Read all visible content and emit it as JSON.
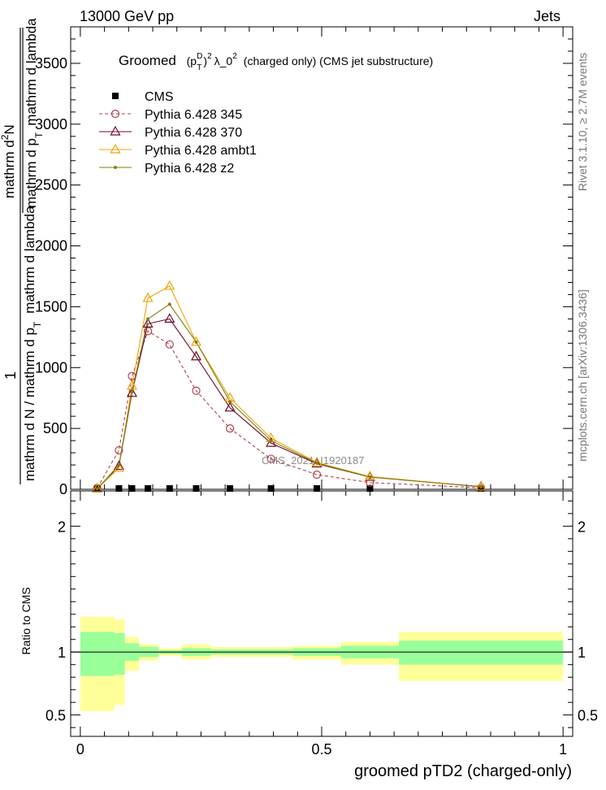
{
  "header": {
    "left": "13000 GeV pp",
    "right": "Jets"
  },
  "side": {
    "rivet": "Rivet 3.1.10, ≥ 2.7M events",
    "mcplots": "mcplots.cern.ch [arXiv:1306.3436]"
  },
  "main_plot": {
    "title_pre": "Groomed",
    "title_math": "(p",
    "title_sup_D": "D",
    "title_sub_T": "T",
    "title_close": ")",
    "title_sup_2": "2",
    "title_lambda": "λ_0",
    "title_sup_2b": "2",
    "title_post": "(charged only) (CMS jet substructure)",
    "ylabel_frac_one": "1",
    "ylabel_frac_den": "mathrm d N / mathrm d p",
    "ylabel_frac_den_sub": "T",
    "ylabel_frac_den2": "mathrm d lambda",
    "ylabel_num": "mathrm d",
    "ylabel_num_sup": "2",
    "ylabel_num2": "N",
    "ylabel_den": "mathrm d p",
    "ylabel_den_sub": "T",
    "ylabel_den2": "mathrm d lambda",
    "watermark": "CMS_2021_I1920187"
  },
  "ratio_plot": {
    "ylabel": "Ratio to CMS"
  },
  "xlabel": "groomed pTD2 (charged-only)",
  "colors": {
    "cms": "#000000",
    "p345": "#b2424d",
    "p370": "#6e0a23",
    "ambt1": "#f0a30a",
    "z2": "#7f7f0f",
    "band_inner": "#99ff99",
    "band_outer": "#ffff99"
  },
  "chart_data": [
    {
      "type": "line",
      "panel": "main",
      "xlim": [
        -0.02,
        1.02
      ],
      "ylim": [
        0,
        3800
      ],
      "yticks": [
        0,
        500,
        1000,
        1500,
        2000,
        2500,
        3000,
        3500
      ],
      "ytick_labels": [
        "0",
        "500",
        "1000",
        "1500",
        "2000",
        "2500",
        "3000",
        "3500"
      ],
      "legend_position": "top-left",
      "series": [
        {
          "name": "CMS",
          "marker": "square",
          "x": [
            0.035,
            0.08,
            0.107,
            0.14,
            0.185,
            0.24,
            0.31,
            0.395,
            0.49,
            0.6,
            0.83
          ],
          "y": [
            0,
            0,
            0,
            0,
            0,
            0,
            0,
            0,
            0,
            0,
            0
          ]
        },
        {
          "name": "Pythia 6.428 345",
          "marker": "circle",
          "dash": true,
          "x": [
            0.035,
            0.08,
            0.107,
            0.14,
            0.185,
            0.24,
            0.31,
            0.395,
            0.49,
            0.6,
            0.83
          ],
          "y": [
            10,
            320,
            930,
            1300,
            1190,
            810,
            500,
            250,
            120,
            55,
            12
          ]
        },
        {
          "name": "Pythia 6.428 370",
          "marker": "triangle",
          "x": [
            0.035,
            0.08,
            0.107,
            0.14,
            0.185,
            0.24,
            0.31,
            0.395,
            0.49,
            0.6,
            0.83
          ],
          "y": [
            5,
            190,
            790,
            1360,
            1400,
            1090,
            670,
            380,
            210,
            100,
            22
          ]
        },
        {
          "name": "Pythia 6.428 ambt1",
          "marker": "triangle",
          "x": [
            0.035,
            0.08,
            0.107,
            0.14,
            0.185,
            0.24,
            0.31,
            0.395,
            0.49,
            0.6,
            0.83
          ],
          "y": [
            5,
            175,
            850,
            1570,
            1670,
            1210,
            750,
            420,
            220,
            105,
            20
          ]
        },
        {
          "name": "Pythia 6.428 z2",
          "marker": "dot",
          "x": [
            0.035,
            0.08,
            0.107,
            0.14,
            0.185,
            0.24,
            0.31,
            0.395,
            0.49,
            0.6,
            0.83
          ],
          "y": [
            5,
            200,
            800,
            1400,
            1520,
            1210,
            720,
            400,
            215,
            100,
            20
          ]
        }
      ]
    },
    {
      "type": "area",
      "panel": "ratio",
      "xlim": [
        -0.02,
        1.02
      ],
      "ylim": [
        0.33,
        2.28
      ],
      "yticks": [
        0.5,
        1,
        2
      ],
      "ytick_labels": [
        "0.5",
        "1",
        "2"
      ],
      "xticks": [
        0,
        0.5,
        1
      ],
      "xtick_labels": [
        "0",
        "0.5",
        "1"
      ],
      "reference_line": 1,
      "bins": [
        {
          "x0": 0.0,
          "x1": 0.07,
          "inner": [
            0.81,
            1.16
          ],
          "outer": [
            0.53,
            1.28
          ]
        },
        {
          "x0": 0.07,
          "x1": 0.092,
          "inner": [
            0.82,
            1.15
          ],
          "outer": [
            0.58,
            1.26
          ]
        },
        {
          "x0": 0.092,
          "x1": 0.122,
          "inner": [
            0.93,
            1.07
          ],
          "outer": [
            0.85,
            1.12
          ]
        },
        {
          "x0": 0.122,
          "x1": 0.162,
          "inner": [
            0.96,
            1.04
          ],
          "outer": [
            0.93,
            1.06
          ]
        },
        {
          "x0": 0.162,
          "x1": 0.21,
          "inner": [
            0.985,
            1.015
          ],
          "outer": [
            0.97,
            1.03
          ]
        },
        {
          "x0": 0.21,
          "x1": 0.27,
          "inner": [
            0.97,
            1.03
          ],
          "outer": [
            0.94,
            1.06
          ]
        },
        {
          "x0": 0.27,
          "x1": 0.35,
          "inner": [
            0.98,
            1.02
          ],
          "outer": [
            0.96,
            1.04
          ]
        },
        {
          "x0": 0.35,
          "x1": 0.44,
          "inner": [
            0.98,
            1.02
          ],
          "outer": [
            0.96,
            1.04
          ]
        },
        {
          "x0": 0.44,
          "x1": 0.54,
          "inner": [
            0.97,
            1.03
          ],
          "outer": [
            0.94,
            1.05
          ]
        },
        {
          "x0": 0.54,
          "x1": 0.66,
          "inner": [
            0.95,
            1.05
          ],
          "outer": [
            0.9,
            1.08
          ]
        },
        {
          "x0": 0.66,
          "x1": 1.0,
          "inner": [
            0.9,
            1.09
          ],
          "outer": [
            0.77,
            1.16
          ]
        }
      ]
    }
  ]
}
